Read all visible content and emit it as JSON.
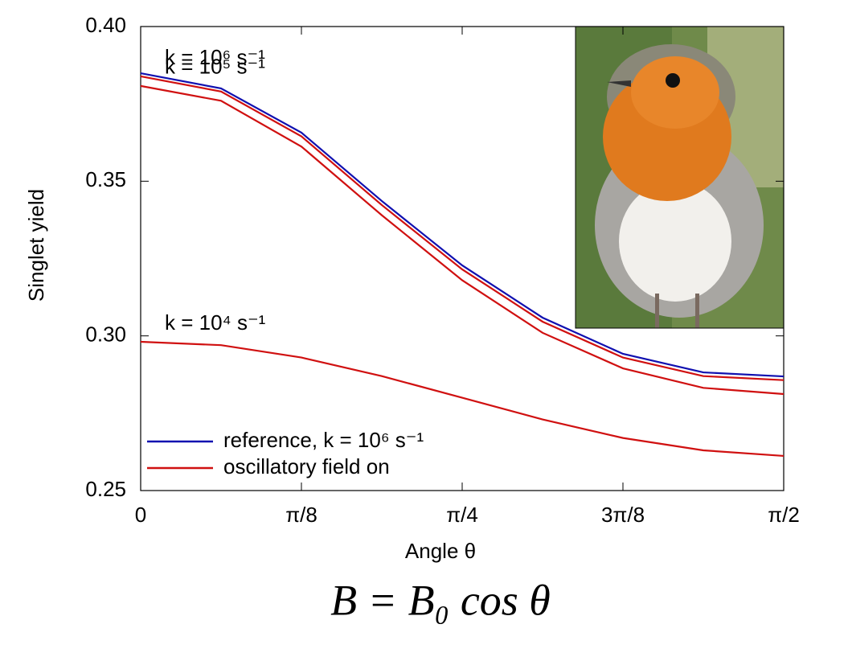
{
  "chart_data": {
    "type": "line",
    "y_axis_label": "Singlet yield",
    "x_axis_label": "Angle θ",
    "formula": "B = B₀ cos θ",
    "x": [
      0,
      0.19635,
      0.3927,
      0.58905,
      0.7854,
      0.98175,
      1.1781,
      1.37445,
      1.5708
    ],
    "xlim": [
      0,
      1.5708
    ],
    "xticks": [
      0,
      {
        "value": 0.3927,
        "label": "π/8"
      },
      {
        "value": 0.7854,
        "label": "π/4"
      },
      {
        "value": 1.1781,
        "label": "3π/8"
      },
      {
        "value": 1.5708,
        "label": "π/2"
      }
    ],
    "ylim": [
      0.25,
      0.4
    ],
    "yticks": [
      {
        "value": 0.25,
        "label": "0.25"
      },
      {
        "value": 0.3,
        "label": "0.30"
      },
      {
        "value": 0.35,
        "label": "0.35"
      },
      {
        "value": 0.4,
        "label": "0.40"
      }
    ],
    "legend": [
      {
        "label": "reference, k = 10⁶ s⁻¹",
        "color": "#1010b0"
      },
      {
        "label": "oscillatory field on",
        "color": "#d01010"
      }
    ],
    "series": [
      {
        "color": "#1010b0",
        "values": [
          0.3849,
          0.38,
          0.3657,
          0.3436,
          0.3228,
          0.3059,
          0.2942,
          0.2882,
          0.2869
        ]
      },
      {
        "color": "#d01010",
        "annotation": "k = 10⁶ s⁻¹",
        "values": [
          0.3839,
          0.379,
          0.3645,
          0.3423,
          0.3215,
          0.3046,
          0.293,
          0.287,
          0.2857
        ]
      },
      {
        "color": "#d01010",
        "annotation": "k = 10⁵ s⁻¹",
        "values": [
          0.3808,
          0.376,
          0.3612,
          0.339,
          0.318,
          0.301,
          0.2895,
          0.2832,
          0.2812
        ]
      },
      {
        "color": "#d01010",
        "annotation": "k = 10⁴ s⁻¹",
        "values": [
          0.2981,
          0.297,
          0.293,
          0.287,
          0.28,
          0.273,
          0.267,
          0.263,
          0.2612
        ]
      }
    ]
  }
}
